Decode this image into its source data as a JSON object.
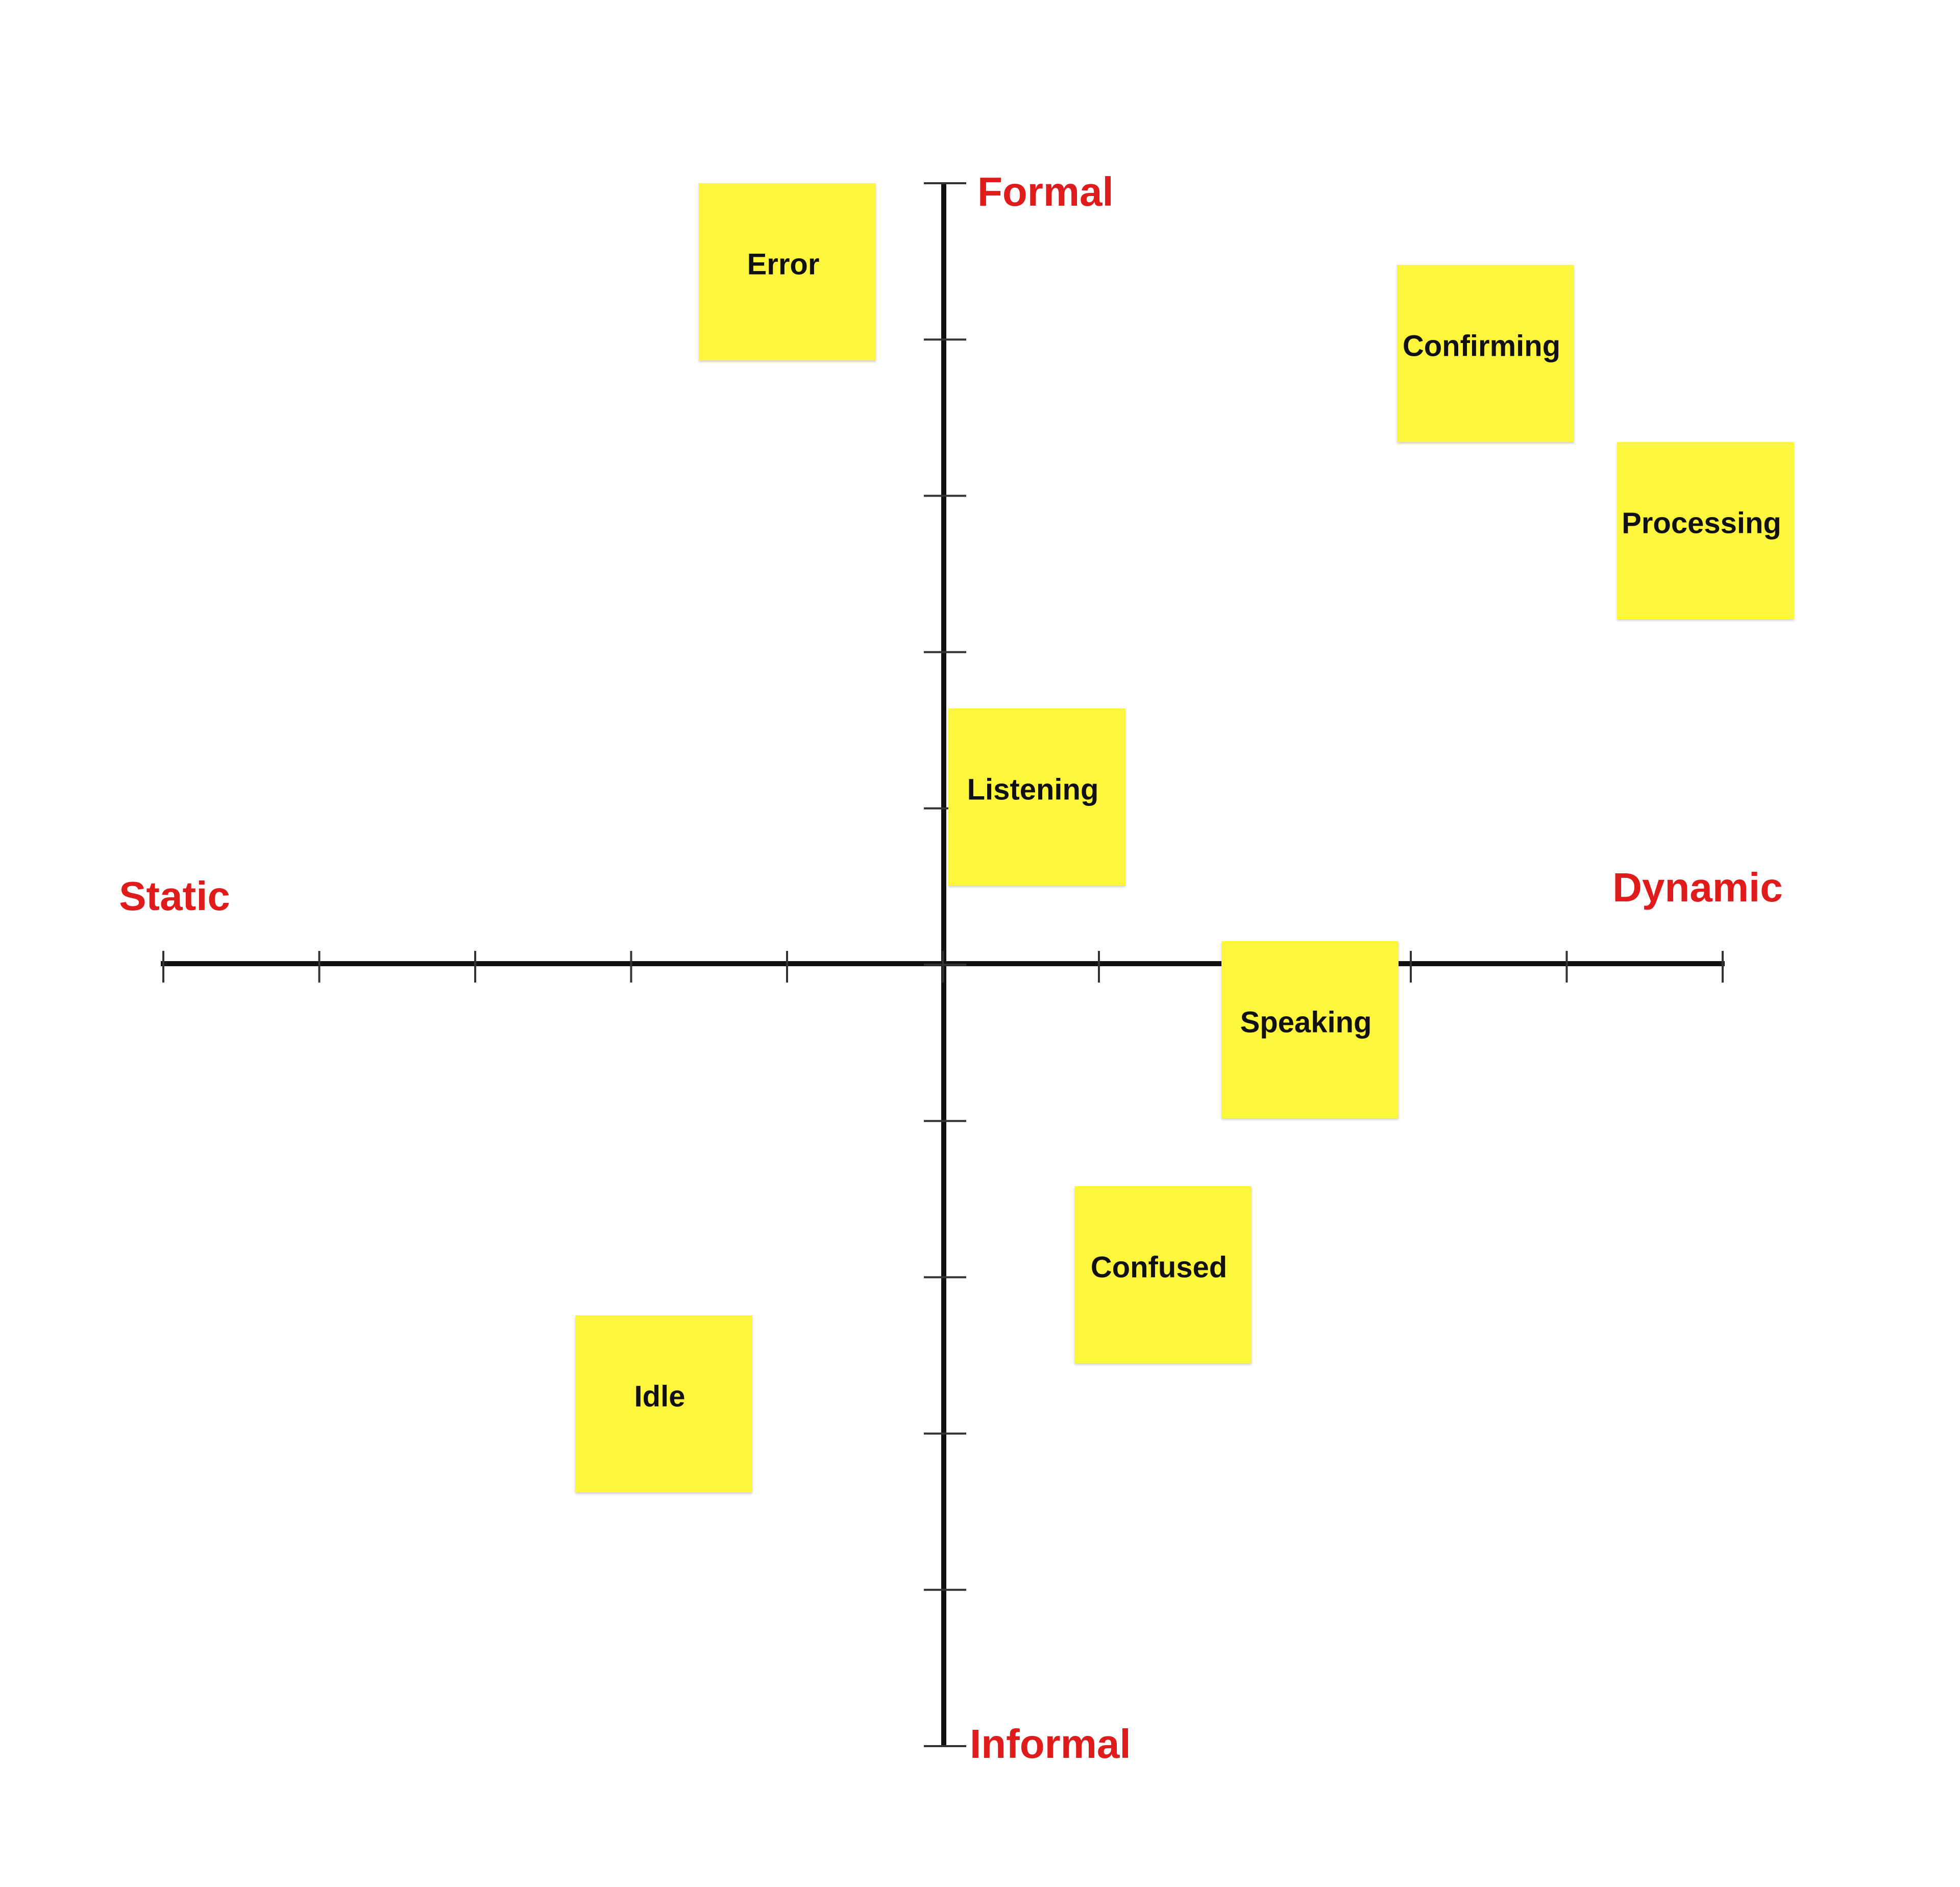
{
  "axes": {
    "top": "Formal",
    "bottom": "Informal",
    "left": "Static",
    "right": "Dynamic"
  },
  "notes": [
    "Error",
    "Confirming",
    "Processing",
    "Listening",
    "Speaking",
    "Confused",
    "Idle"
  ]
}
